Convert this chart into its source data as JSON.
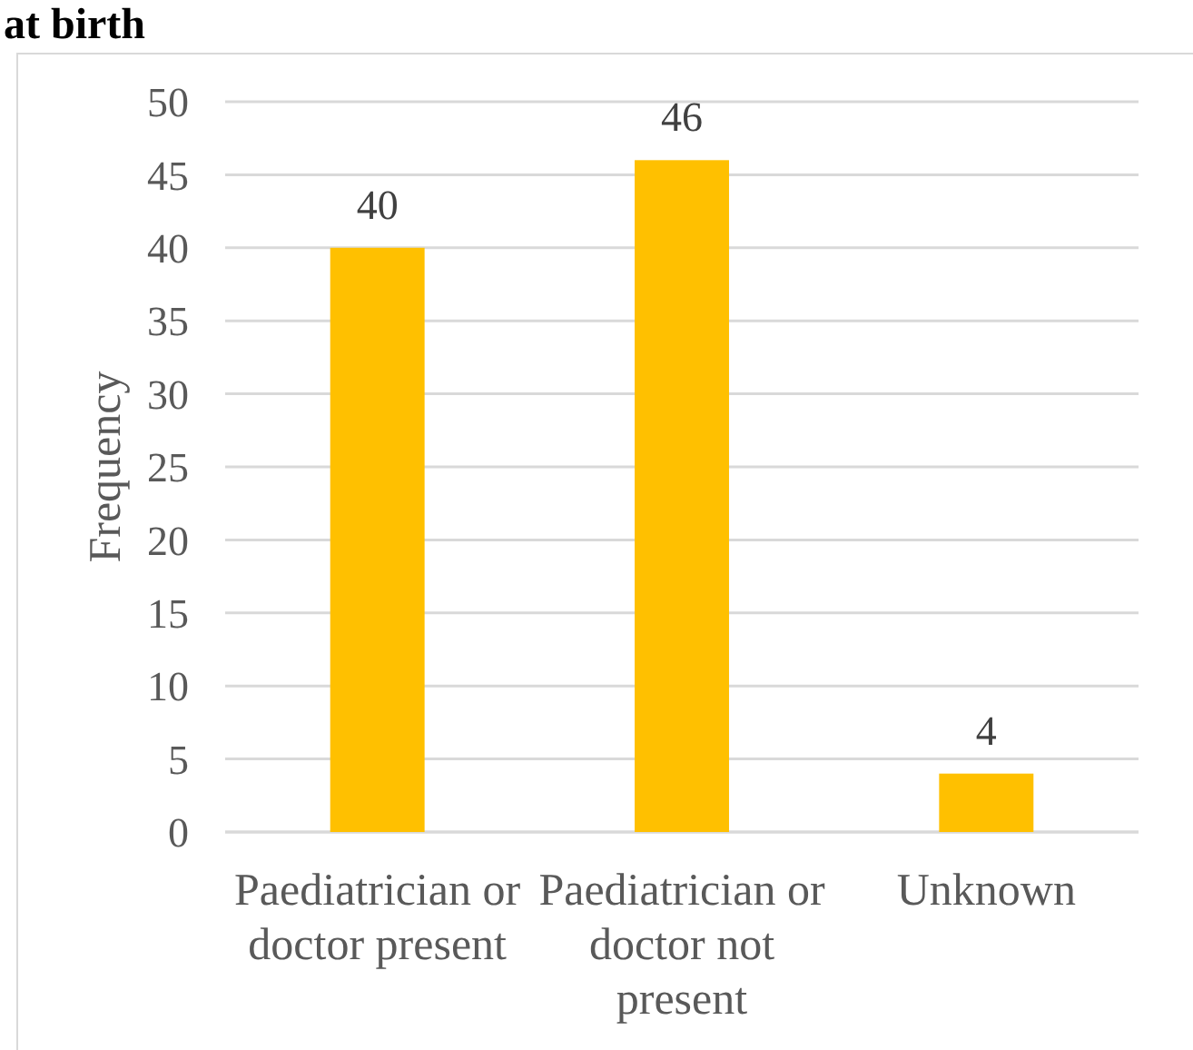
{
  "chart_data": {
    "type": "bar",
    "title": "at birth",
    "categories": [
      "Paediatrician or doctor present",
      "Paediatrician or doctor not present",
      "Unknown"
    ],
    "values": [
      40,
      46,
      4
    ],
    "color": "#ffc000",
    "ylabel": "Frequency",
    "ylim": [
      0,
      50
    ],
    "yticks": [
      0,
      5,
      10,
      15,
      20,
      25,
      30,
      35,
      40,
      45,
      50
    ],
    "grid": "y",
    "data_labels": true
  }
}
